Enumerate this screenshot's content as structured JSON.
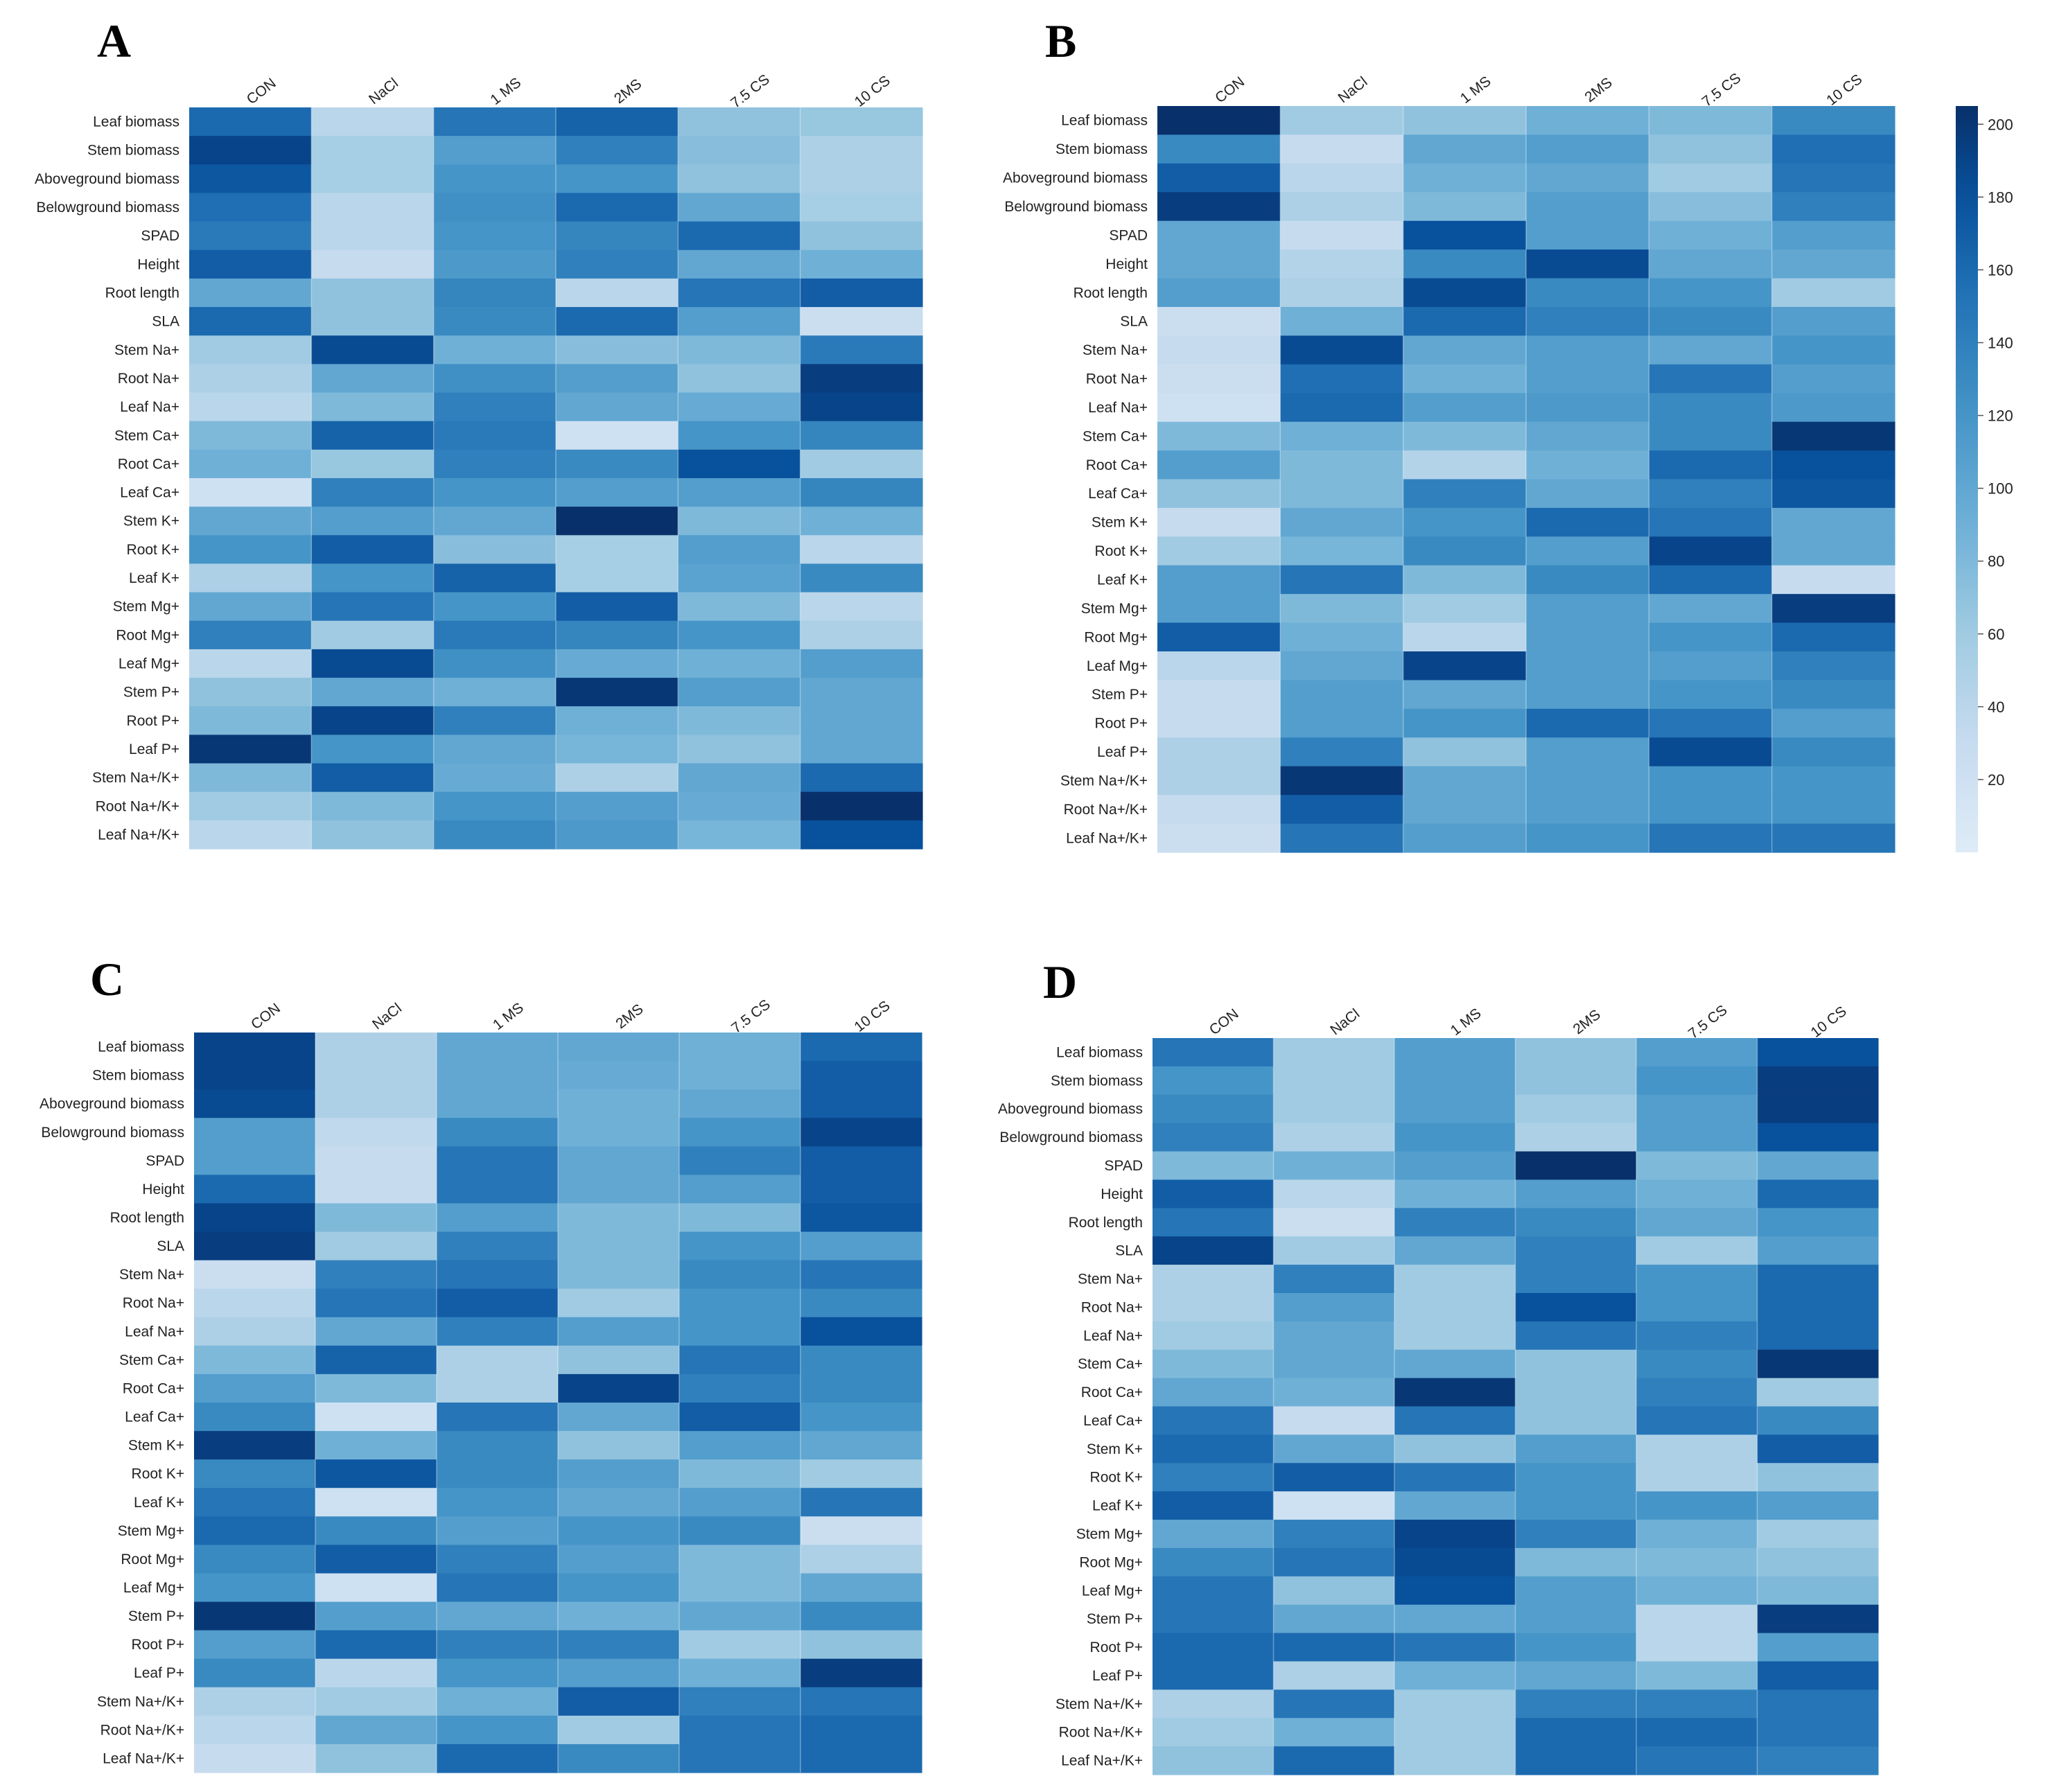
{
  "chart_data": {
    "type": "heatmap",
    "colormap": "Blues",
    "colorbar": {
      "min": 0,
      "max": 205,
      "ticks": [
        20,
        40,
        60,
        80,
        100,
        120,
        140,
        160,
        180,
        200
      ]
    },
    "columns": [
      "CON",
      "NaCl",
      "1 MS",
      "2MS",
      "7.5 CS",
      "10 CS"
    ],
    "rows": [
      "Leaf biomass",
      "Stem biomass",
      "Aboveground biomass",
      "Belowground biomass",
      "SPAD",
      "Height",
      "Root length",
      "SLA",
      "Stem Na+",
      "Root Na+",
      "Leaf Na+",
      "Stem Ca+",
      "Root Ca+",
      "Leaf Ca+",
      "Stem K+",
      "Root K+",
      "Leaf K+",
      "Stem Mg+",
      "Root Mg+",
      "Leaf Mg+",
      "Stem P+",
      "Root P+",
      "Leaf P+",
      "Stem Na+/K+",
      "Root Na+/K+",
      "Leaf Na+/K+"
    ],
    "panels": [
      {
        "label": "A",
        "values": [
          [
            160,
            40,
            150,
            165,
            70,
            65
          ],
          [
            190,
            55,
            110,
            140,
            75,
            50
          ],
          [
            175,
            55,
            120,
            120,
            70,
            50
          ],
          [
            155,
            40,
            125,
            160,
            100,
            55
          ],
          [
            145,
            40,
            120,
            135,
            160,
            70
          ],
          [
            170,
            30,
            115,
            140,
            100,
            90
          ],
          [
            100,
            70,
            135,
            40,
            150,
            170
          ],
          [
            160,
            70,
            130,
            160,
            110,
            25
          ],
          [
            60,
            185,
            90,
            75,
            80,
            145
          ],
          [
            50,
            100,
            125,
            110,
            70,
            195
          ],
          [
            40,
            80,
            140,
            100,
            95,
            190
          ],
          [
            80,
            165,
            145,
            20,
            120,
            135
          ],
          [
            90,
            65,
            140,
            130,
            180,
            60
          ],
          [
            20,
            140,
            120,
            110,
            110,
            135
          ],
          [
            100,
            110,
            100,
            205,
            80,
            90
          ],
          [
            120,
            170,
            75,
            55,
            110,
            40
          ],
          [
            50,
            120,
            165,
            55,
            105,
            130
          ],
          [
            100,
            150,
            120,
            170,
            80,
            40
          ],
          [
            140,
            60,
            145,
            135,
            120,
            50
          ],
          [
            40,
            185,
            125,
            95,
            90,
            110
          ],
          [
            70,
            100,
            90,
            200,
            110,
            100
          ],
          [
            80,
            190,
            140,
            90,
            80,
            100
          ],
          [
            200,
            120,
            100,
            85,
            70,
            100
          ],
          [
            80,
            170,
            95,
            50,
            100,
            160
          ],
          [
            60,
            80,
            120,
            110,
            95,
            205
          ],
          [
            40,
            70,
            130,
            115,
            85,
            180
          ]
        ]
      },
      {
        "label": "B",
        "values": [
          [
            205,
            60,
            70,
            90,
            80,
            130
          ],
          [
            130,
            30,
            100,
            110,
            70,
            155
          ],
          [
            170,
            40,
            90,
            100,
            60,
            150
          ],
          [
            195,
            50,
            80,
            110,
            75,
            140
          ],
          [
            100,
            30,
            180,
            110,
            90,
            110
          ],
          [
            100,
            45,
            130,
            185,
            100,
            100
          ],
          [
            110,
            50,
            185,
            130,
            120,
            60
          ],
          [
            25,
            90,
            160,
            140,
            130,
            110
          ],
          [
            30,
            185,
            100,
            110,
            100,
            120
          ],
          [
            25,
            155,
            90,
            110,
            150,
            110
          ],
          [
            20,
            160,
            110,
            115,
            130,
            115
          ],
          [
            80,
            90,
            80,
            100,
            130,
            200
          ],
          [
            110,
            80,
            45,
            90,
            160,
            180
          ],
          [
            70,
            80,
            140,
            100,
            140,
            175
          ],
          [
            30,
            100,
            120,
            160,
            150,
            100
          ],
          [
            60,
            85,
            130,
            110,
            190,
            100
          ],
          [
            110,
            150,
            80,
            130,
            160,
            30
          ],
          [
            110,
            80,
            60,
            110,
            100,
            195
          ],
          [
            170,
            90,
            40,
            110,
            120,
            160
          ],
          [
            40,
            100,
            190,
            110,
            110,
            140
          ],
          [
            30,
            110,
            100,
            110,
            120,
            130
          ],
          [
            30,
            110,
            120,
            160,
            150,
            110
          ],
          [
            50,
            140,
            70,
            110,
            185,
            130
          ],
          [
            50,
            200,
            100,
            110,
            120,
            120
          ],
          [
            30,
            170,
            100,
            110,
            120,
            120
          ],
          [
            25,
            150,
            110,
            120,
            150,
            150
          ]
        ]
      },
      {
        "label": "C",
        "values": [
          [
            190,
            50,
            100,
            100,
            90,
            160
          ],
          [
            190,
            50,
            100,
            95,
            90,
            170
          ],
          [
            185,
            50,
            100,
            90,
            100,
            170
          ],
          [
            110,
            35,
            130,
            90,
            120,
            190
          ],
          [
            110,
            30,
            150,
            100,
            140,
            170
          ],
          [
            160,
            30,
            150,
            100,
            110,
            170
          ],
          [
            190,
            80,
            110,
            80,
            80,
            175
          ],
          [
            195,
            60,
            140,
            80,
            120,
            110
          ],
          [
            25,
            140,
            150,
            80,
            130,
            150
          ],
          [
            40,
            150,
            170,
            60,
            120,
            130
          ],
          [
            50,
            100,
            140,
            110,
            120,
            180
          ],
          [
            80,
            165,
            50,
            70,
            150,
            130
          ],
          [
            110,
            80,
            50,
            190,
            140,
            130
          ],
          [
            130,
            20,
            150,
            100,
            170,
            120
          ],
          [
            195,
            90,
            130,
            70,
            110,
            100
          ],
          [
            130,
            175,
            130,
            110,
            80,
            60
          ],
          [
            150,
            20,
            120,
            100,
            110,
            150
          ],
          [
            160,
            130,
            110,
            120,
            130,
            25
          ],
          [
            130,
            170,
            140,
            110,
            80,
            50
          ],
          [
            120,
            20,
            150,
            120,
            80,
            100
          ],
          [
            200,
            110,
            100,
            90,
            100,
            130
          ],
          [
            110,
            160,
            140,
            140,
            60,
            70
          ],
          [
            130,
            40,
            120,
            110,
            90,
            195
          ],
          [
            50,
            60,
            90,
            170,
            140,
            150
          ],
          [
            40,
            100,
            120,
            60,
            150,
            160
          ],
          [
            30,
            70,
            160,
            130,
            150,
            160
          ]
        ]
      },
      {
        "label": "D",
        "values": [
          [
            150,
            60,
            110,
            70,
            110,
            180
          ],
          [
            120,
            60,
            110,
            70,
            120,
            195
          ],
          [
            130,
            60,
            110,
            60,
            110,
            195
          ],
          [
            140,
            50,
            120,
            50,
            110,
            180
          ],
          [
            80,
            90,
            110,
            205,
            80,
            100
          ],
          [
            170,
            40,
            90,
            110,
            90,
            160
          ],
          [
            150,
            25,
            140,
            130,
            100,
            120
          ],
          [
            190,
            60,
            100,
            140,
            60,
            110
          ],
          [
            50,
            140,
            60,
            140,
            120,
            160
          ],
          [
            50,
            110,
            60,
            180,
            120,
            160
          ],
          [
            60,
            100,
            60,
            150,
            140,
            160
          ],
          [
            80,
            100,
            100,
            70,
            130,
            200
          ],
          [
            100,
            90,
            200,
            70,
            140,
            60
          ],
          [
            150,
            30,
            150,
            70,
            150,
            130
          ],
          [
            160,
            100,
            70,
            110,
            50,
            170
          ],
          [
            140,
            170,
            150,
            120,
            50,
            70
          ],
          [
            170,
            20,
            100,
            120,
            120,
            110
          ],
          [
            100,
            140,
            190,
            140,
            90,
            60
          ],
          [
            130,
            150,
            185,
            80,
            80,
            70
          ],
          [
            150,
            70,
            180,
            110,
            90,
            80
          ],
          [
            150,
            100,
            100,
            110,
            40,
            195
          ],
          [
            160,
            160,
            150,
            120,
            40,
            110
          ],
          [
            160,
            50,
            90,
            100,
            80,
            170
          ],
          [
            50,
            150,
            60,
            140,
            140,
            150
          ],
          [
            60,
            90,
            60,
            160,
            160,
            150
          ],
          [
            70,
            160,
            60,
            160,
            150,
            140
          ]
        ]
      }
    ]
  }
}
